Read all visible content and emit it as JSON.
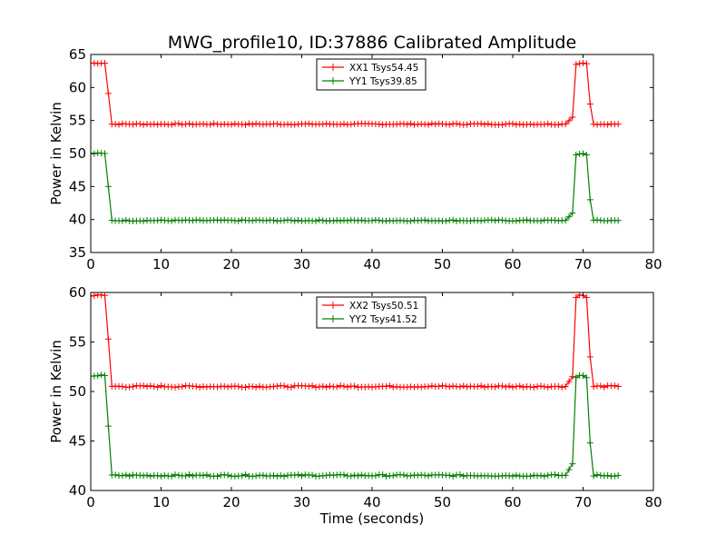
{
  "figure": {
    "title": "MWG_profile10, ID:37886 Calibrated Amplitude"
  },
  "colors": {
    "xx": "#ff0000",
    "yy": "#008000"
  },
  "chart_data": [
    {
      "type": "line",
      "ylabel": "Power in Kelvin",
      "xlabel": "",
      "xlim": [
        0,
        80
      ],
      "ylim": [
        35,
        65
      ],
      "xticks": [
        "0",
        "10",
        "20",
        "30",
        "40",
        "50",
        "60",
        "70",
        "80"
      ],
      "yticks": [
        "35",
        "40",
        "45",
        "50",
        "55",
        "60",
        "65"
      ],
      "legend": "top-center",
      "grid": false,
      "series": [
        {
          "name": "XX1 Tsys54.45",
          "color": "#ff0000",
          "marker": "+",
          "points": [
            [
              0.0,
              63.7
            ],
            [
              0.5,
              63.7
            ],
            [
              1.0,
              63.7
            ],
            [
              1.5,
              63.7
            ],
            [
              2.0,
              63.7
            ],
            [
              2.5,
              59.1
            ],
            [
              3.0,
              54.45
            ],
            [
              67.5,
              54.45
            ],
            [
              68.5,
              55.5
            ],
            [
              69.0,
              63.5
            ],
            [
              69.5,
              63.7
            ],
            [
              70.0,
              63.7
            ],
            [
              70.5,
              63.6
            ],
            [
              71.0,
              57.5
            ],
            [
              71.5,
              54.45
            ],
            [
              75.0,
              54.45
            ]
          ]
        },
        {
          "name": "YY1 Tsys39.85",
          "color": "#008000",
          "marker": "+",
          "points": [
            [
              0.0,
              50.0
            ],
            [
              0.5,
              50.0
            ],
            [
              1.0,
              50.0
            ],
            [
              1.5,
              50.0
            ],
            [
              2.0,
              50.0
            ],
            [
              2.5,
              45.0
            ],
            [
              3.0,
              39.85
            ],
            [
              67.5,
              39.85
            ],
            [
              68.5,
              41.0
            ],
            [
              69.0,
              49.8
            ],
            [
              69.5,
              50.0
            ],
            [
              70.0,
              50.0
            ],
            [
              70.5,
              49.8
            ],
            [
              71.0,
              43.0
            ],
            [
              71.5,
              39.85
            ],
            [
              75.0,
              39.85
            ]
          ]
        }
      ]
    },
    {
      "type": "line",
      "ylabel": "Power in Kelvin",
      "xlabel": "Time (seconds)",
      "xlim": [
        0,
        80
      ],
      "ylim": [
        40,
        60
      ],
      "xticks": [
        "0",
        "10",
        "20",
        "30",
        "40",
        "50",
        "60",
        "70",
        "80"
      ],
      "yticks": [
        "40",
        "45",
        "50",
        "55",
        "60"
      ],
      "legend": "top-center",
      "grid": false,
      "series": [
        {
          "name": "XX2 Tsys50.51",
          "color": "#ff0000",
          "marker": "+",
          "points": [
            [
              0.0,
              59.7
            ],
            [
              0.5,
              59.7
            ],
            [
              1.0,
              59.7
            ],
            [
              1.5,
              59.7
            ],
            [
              2.0,
              59.7
            ],
            [
              2.5,
              55.3
            ],
            [
              3.0,
              50.51
            ],
            [
              67.5,
              50.51
            ],
            [
              68.5,
              51.5
            ],
            [
              69.0,
              59.5
            ],
            [
              69.5,
              59.7
            ],
            [
              70.0,
              59.7
            ],
            [
              70.5,
              59.5
            ],
            [
              71.0,
              53.5
            ],
            [
              71.5,
              50.51
            ],
            [
              75.0,
              50.51
            ]
          ]
        },
        {
          "name": "YY2 Tsys41.52",
          "color": "#008000",
          "marker": "+",
          "points": [
            [
              0.0,
              51.6
            ],
            [
              0.5,
              51.6
            ],
            [
              1.0,
              51.6
            ],
            [
              1.5,
              51.6
            ],
            [
              2.0,
              51.6
            ],
            [
              2.5,
              46.5
            ],
            [
              3.0,
              41.52
            ],
            [
              67.5,
              41.52
            ],
            [
              68.5,
              42.7
            ],
            [
              69.0,
              51.4
            ],
            [
              69.5,
              51.6
            ],
            [
              70.0,
              51.6
            ],
            [
              70.5,
              51.4
            ],
            [
              71.0,
              44.8
            ],
            [
              71.5,
              41.52
            ],
            [
              75.0,
              41.52
            ]
          ]
        }
      ]
    }
  ]
}
